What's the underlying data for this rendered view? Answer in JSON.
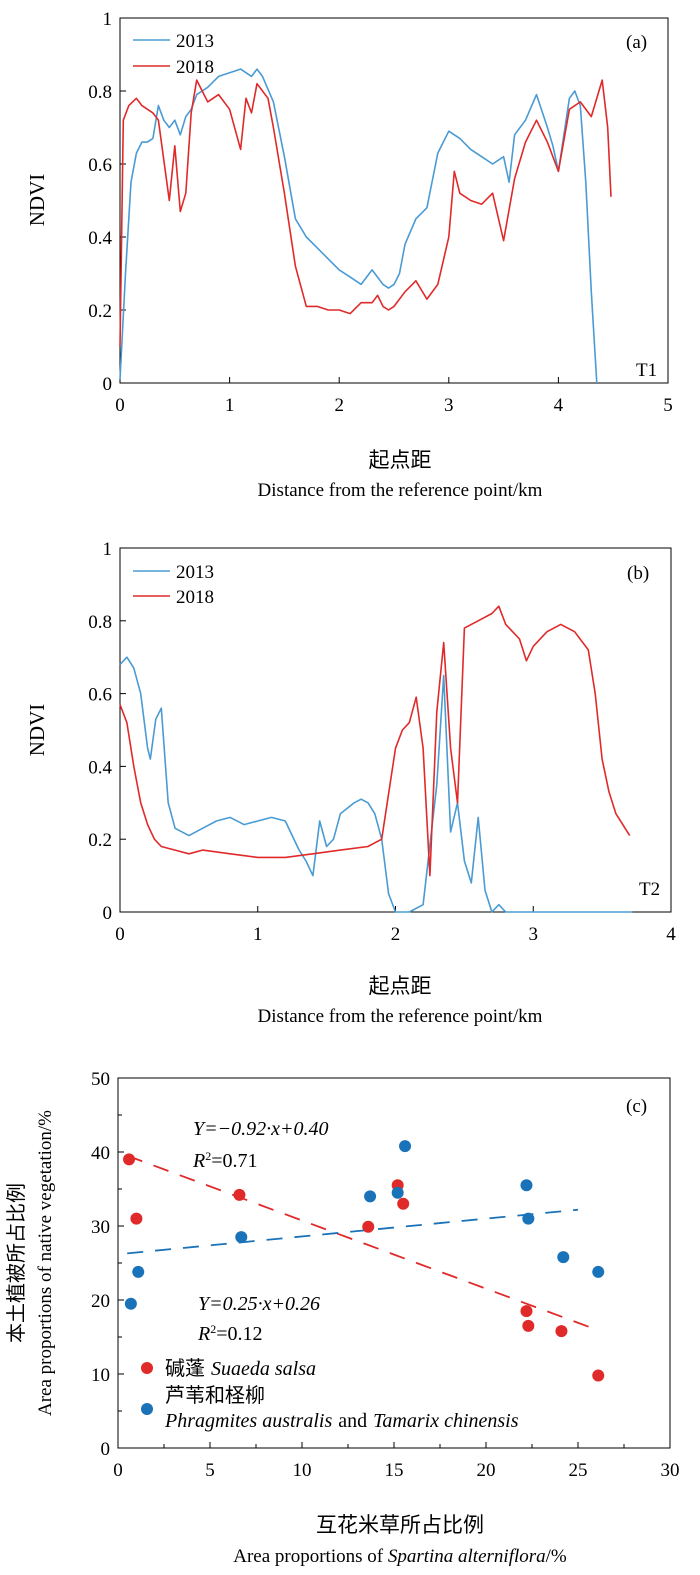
{
  "chart_data": [
    {
      "type": "line",
      "panel_label": "(a)",
      "corner_label": "T1",
      "ylabel": "NDVI",
      "xlabel_cn": "起点距",
      "xlabel_en": "Distance from the reference point/km",
      "xlim": [
        0,
        5
      ],
      "ylim": [
        0,
        1
      ],
      "xticks": [
        "0",
        "1",
        "2",
        "3",
        "4",
        "5"
      ],
      "yticks": [
        "0",
        "0.2",
        "0.4",
        "0.6",
        "0.8",
        "1"
      ],
      "legend_position": "top-left",
      "series": [
        {
          "name": "2013",
          "color": "#4a9bd4",
          "x": [
            0,
            0.05,
            0.1,
            0.15,
            0.2,
            0.25,
            0.3,
            0.35,
            0.4,
            0.45,
            0.5,
            0.55,
            0.6,
            0.65,
            0.7,
            0.75,
            0.8,
            0.9,
            1.0,
            1.1,
            1.2,
            1.25,
            1.3,
            1.4,
            1.5,
            1.6,
            1.7,
            1.8,
            1.9,
            2.0,
            2.1,
            2.2,
            2.3,
            2.4,
            2.45,
            2.5,
            2.55,
            2.6,
            2.7,
            2.8,
            2.9,
            3.0,
            3.1,
            3.2,
            3.3,
            3.4,
            3.5,
            3.55,
            3.6,
            3.7,
            3.8,
            3.9,
            3.95,
            4.0,
            4.05,
            4.1,
            4.15,
            4.2,
            4.25,
            4.3,
            4.35
          ],
          "y": [
            0.01,
            0.3,
            0.55,
            0.63,
            0.66,
            0.66,
            0.67,
            0.76,
            0.72,
            0.7,
            0.72,
            0.68,
            0.73,
            0.75,
            0.79,
            0.8,
            0.81,
            0.84,
            0.85,
            0.86,
            0.84,
            0.86,
            0.84,
            0.77,
            0.62,
            0.45,
            0.4,
            0.37,
            0.34,
            0.31,
            0.29,
            0.27,
            0.31,
            0.27,
            0.26,
            0.27,
            0.3,
            0.38,
            0.45,
            0.48,
            0.63,
            0.69,
            0.67,
            0.64,
            0.62,
            0.6,
            0.62,
            0.55,
            0.68,
            0.72,
            0.79,
            0.7,
            0.65,
            0.58,
            0.68,
            0.78,
            0.8,
            0.76,
            0.55,
            0.25,
            0.0
          ]
        },
        {
          "name": "2018",
          "color": "#e02a2a",
          "x": [
            0,
            0.03,
            0.08,
            0.15,
            0.2,
            0.3,
            0.35,
            0.45,
            0.5,
            0.55,
            0.6,
            0.65,
            0.7,
            0.75,
            0.8,
            0.9,
            1.0,
            1.1,
            1.15,
            1.2,
            1.25,
            1.3,
            1.35,
            1.4,
            1.5,
            1.6,
            1.7,
            1.8,
            1.9,
            2.0,
            2.1,
            2.2,
            2.3,
            2.35,
            2.4,
            2.45,
            2.5,
            2.6,
            2.7,
            2.8,
            2.9,
            3.0,
            3.05,
            3.1,
            3.2,
            3.3,
            3.4,
            3.5,
            3.6,
            3.7,
            3.8,
            3.9,
            4.0,
            4.1,
            4.2,
            4.3,
            4.4,
            4.45,
            4.48
          ],
          "y": [
            0.1,
            0.72,
            0.76,
            0.78,
            0.76,
            0.74,
            0.72,
            0.5,
            0.65,
            0.47,
            0.52,
            0.74,
            0.83,
            0.8,
            0.77,
            0.79,
            0.75,
            0.64,
            0.78,
            0.74,
            0.82,
            0.8,
            0.78,
            0.7,
            0.52,
            0.32,
            0.21,
            0.21,
            0.2,
            0.2,
            0.19,
            0.22,
            0.22,
            0.24,
            0.21,
            0.2,
            0.21,
            0.25,
            0.28,
            0.23,
            0.27,
            0.4,
            0.58,
            0.52,
            0.5,
            0.49,
            0.52,
            0.39,
            0.56,
            0.66,
            0.72,
            0.66,
            0.58,
            0.75,
            0.77,
            0.73,
            0.83,
            0.7,
            0.51
          ]
        }
      ]
    },
    {
      "type": "line",
      "panel_label": "(b)",
      "corner_label": "T2",
      "ylabel": "NDVI",
      "xlabel_cn": "起点距",
      "xlabel_en": "Distance from the reference point/km",
      "xlim": [
        0,
        4
      ],
      "ylim": [
        0,
        1
      ],
      "xticks": [
        "0",
        "1",
        "2",
        "3",
        "4"
      ],
      "yticks": [
        "0",
        "0.2",
        "0.4",
        "0.6",
        "0.8",
        "1"
      ],
      "legend_position": "top-left",
      "series": [
        {
          "name": "2013",
          "color": "#4a9bd4",
          "x": [
            0,
            0.05,
            0.1,
            0.15,
            0.2,
            0.22,
            0.26,
            0.3,
            0.35,
            0.4,
            0.5,
            0.6,
            0.7,
            0.8,
            0.9,
            1.0,
            1.1,
            1.2,
            1.3,
            1.35,
            1.4,
            1.45,
            1.5,
            1.55,
            1.6,
            1.7,
            1.75,
            1.8,
            1.85,
            1.9,
            1.95,
            2.0,
            2.1,
            2.2,
            2.3,
            2.35,
            2.4,
            2.45,
            2.5,
            2.55,
            2.6,
            2.65,
            2.7,
            2.75,
            2.8,
            3.0,
            3.5,
            3.72
          ],
          "y": [
            0.68,
            0.7,
            0.67,
            0.6,
            0.45,
            0.42,
            0.53,
            0.56,
            0.3,
            0.23,
            0.21,
            0.23,
            0.25,
            0.26,
            0.24,
            0.25,
            0.26,
            0.25,
            0.17,
            0.14,
            0.1,
            0.25,
            0.18,
            0.2,
            0.27,
            0.3,
            0.31,
            0.3,
            0.27,
            0.2,
            0.05,
            0.0,
            0.0,
            0.02,
            0.35,
            0.65,
            0.22,
            0.3,
            0.14,
            0.08,
            0.26,
            0.06,
            0.0,
            0.02,
            0.0,
            0.0,
            0.0,
            0.0
          ]
        },
        {
          "name": "2018",
          "color": "#e02a2a",
          "x": [
            0,
            0.05,
            0.1,
            0.15,
            0.2,
            0.25,
            0.3,
            0.4,
            0.5,
            0.6,
            0.8,
            1.0,
            1.2,
            1.4,
            1.6,
            1.8,
            1.85,
            1.9,
            2.0,
            2.05,
            2.1,
            2.15,
            2.2,
            2.25,
            2.3,
            2.35,
            2.4,
            2.45,
            2.5,
            2.6,
            2.7,
            2.75,
            2.8,
            2.9,
            2.95,
            3.0,
            3.1,
            3.2,
            3.3,
            3.4,
            3.45,
            3.5,
            3.55,
            3.6,
            3.7
          ],
          "y": [
            0.57,
            0.52,
            0.4,
            0.3,
            0.24,
            0.2,
            0.18,
            0.17,
            0.16,
            0.17,
            0.16,
            0.15,
            0.15,
            0.16,
            0.17,
            0.18,
            0.19,
            0.2,
            0.45,
            0.5,
            0.52,
            0.59,
            0.45,
            0.1,
            0.55,
            0.74,
            0.45,
            0.3,
            0.78,
            0.8,
            0.82,
            0.84,
            0.79,
            0.75,
            0.69,
            0.73,
            0.77,
            0.79,
            0.77,
            0.72,
            0.6,
            0.42,
            0.33,
            0.27,
            0.21
          ]
        }
      ]
    },
    {
      "type": "scatter",
      "panel_label": "(c)",
      "ylabel_cn": "本土植被所占比例",
      "ylabel_en": "Area proportions of native vegetation/%",
      "xlabel_cn": "互花米草所占比例",
      "xlabel_en_prefix": "Area proportions of ",
      "xlabel_en_species": "Spartina alterniflora",
      "xlabel_en_suffix": "/%",
      "xlim": [
        0,
        30
      ],
      "ylim": [
        0,
        50
      ],
      "xticks": [
        "0",
        "5",
        "10",
        "15",
        "20",
        "25",
        "30"
      ],
      "yticks": [
        "0",
        "10",
        "20",
        "30",
        "40",
        "50"
      ],
      "equation_red": "Y=−0.92·x+0.40",
      "r2_red_label": "R",
      "r2_red_value": "=0.71",
      "equation_blue": "Y=0.25·x+0.26",
      "r2_blue_label": "R",
      "r2_blue_value": "=0.12",
      "r2_superscript": "2",
      "series": [
        {
          "name_cn": "碱蓬",
          "name_latin": "Suaeda salsa",
          "color": "#e02a2a",
          "x": [
            0.6,
            1.0,
            6.6,
            13.6,
            15.2,
            15.5,
            22.2,
            22.3,
            24.1,
            26.1
          ],
          "y": [
            39,
            31,
            34.2,
            29.9,
            35.5,
            33,
            18.5,
            16.5,
            15.8,
            9.8
          ],
          "trend": {
            "x": [
              0.5,
              26.0
            ],
            "y": [
              39.5,
              16
            ]
          }
        },
        {
          "name_cn": "芦苇和柽柳",
          "name_latin_1": "Phragmites australis",
          "name_and": "and",
          "name_latin_2": "Tamarix chinensis",
          "color": "#1a72b8",
          "x": [
            0.7,
            1.1,
            6.7,
            13.7,
            15.2,
            15.6,
            22.2,
            22.3,
            24.2,
            26.1
          ],
          "y": [
            19.5,
            23.8,
            28.5,
            34,
            34.5,
            40.8,
            35.5,
            31,
            25.8,
            23.8
          ],
          "trend": {
            "x": [
              0.5,
              25.0
            ],
            "y": [
              26.3,
              32.2
            ]
          }
        }
      ]
    }
  ]
}
